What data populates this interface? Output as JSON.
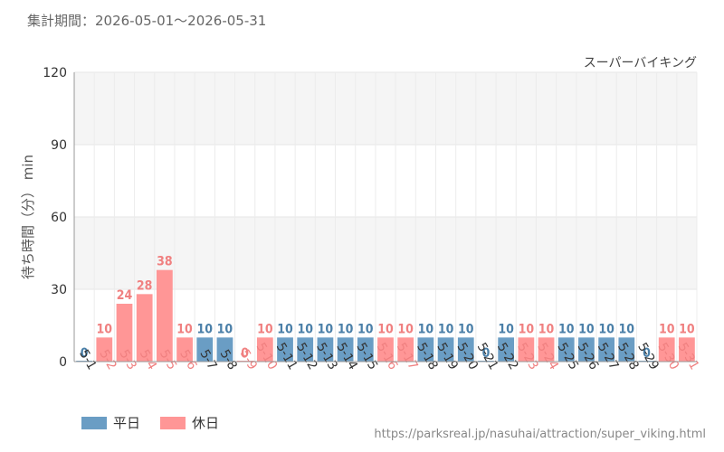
{
  "header": {
    "period": "集計期間：2026-05-01～2026-05-31"
  },
  "chart_data": {
    "type": "bar",
    "title": "スーパーバイキング",
    "ylabel": "待ち時間（分） min",
    "xlabel": "",
    "ylim": [
      0,
      120
    ],
    "yticks": [
      0,
      30,
      60,
      90,
      120
    ],
    "grid": true,
    "categories": [
      "5-1",
      "5-2",
      "5-3",
      "5-4",
      "5-5",
      "5-6",
      "5-7",
      "5-8",
      "5-9",
      "5-10",
      "5-11",
      "5-12",
      "5-13",
      "5-14",
      "5-15",
      "5-16",
      "5-17",
      "5-18",
      "5-19",
      "5-20",
      "5-21",
      "5-22",
      "5-23",
      "5-24",
      "5-25",
      "5-26",
      "5-27",
      "5-28",
      "5-29",
      "5-30",
      "5-31"
    ],
    "values": [
      0,
      10,
      24,
      28,
      38,
      10,
      10,
      10,
      0,
      10,
      10,
      10,
      10,
      10,
      10,
      10,
      10,
      10,
      10,
      10,
      0,
      10,
      10,
      10,
      10,
      10,
      10,
      10,
      0,
      10,
      10
    ],
    "day_type": [
      "weekday",
      "holiday",
      "holiday",
      "holiday",
      "holiday",
      "holiday",
      "weekday",
      "weekday",
      "holiday",
      "holiday",
      "weekday",
      "weekday",
      "weekday",
      "weekday",
      "weekday",
      "holiday",
      "holiday",
      "weekday",
      "weekday",
      "weekday",
      "weekday",
      "weekday",
      "holiday",
      "holiday",
      "weekday",
      "weekday",
      "weekday",
      "weekday",
      "weekday",
      "holiday",
      "holiday"
    ],
    "legend": [
      {
        "key": "weekday",
        "label": "平日",
        "color": "#6a9dc4"
      },
      {
        "key": "holiday",
        "label": "休日",
        "color": "#ff9696"
      }
    ],
    "label_colors": {
      "weekday": "#333333",
      "holiday": "#f08080",
      "weekday_value": "#4a7fa8",
      "holiday_value": "#f08080"
    },
    "legend_position": "bottom-left"
  },
  "footer": {
    "source": "https://parksreal.jp/nasuhai/attraction/super_viking.html"
  }
}
